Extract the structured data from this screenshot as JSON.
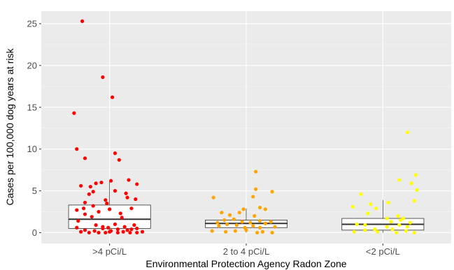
{
  "chart_data": {
    "type": "box+jitter",
    "title": "",
    "xlabel": "Environmental Protection Agency Radon Zone",
    "ylabel": "Cases per 100,000 dog years at risk",
    "ylim": [
      -1.3,
      26.5
    ],
    "yticks": [
      0,
      5,
      10,
      15,
      20,
      25
    ],
    "grid": true,
    "categories": [
      ">4 pCi/L",
      "2 to 4 pCi/L",
      "<2 pCi/L"
    ],
    "colors": [
      "#ff0000",
      "#ffa500",
      "#ffff00"
    ],
    "boxes": [
      {
        "q1": 0.5,
        "median": 1.6,
        "q3": 3.3,
        "whisker_low": 0.0,
        "whisker_high": 6.2
      },
      {
        "q1": 0.6,
        "median": 1.1,
        "q3": 1.5,
        "whisker_low": 0.0,
        "whisker_high": 2.9
      },
      {
        "q1": 0.3,
        "median": 1.0,
        "q3": 1.7,
        "whisker_low": 0.0,
        "whisker_high": 3.9
      }
    ],
    "points": [
      [
        [
          -0.2,
          25.3
        ],
        [
          -0.05,
          18.6
        ],
        [
          0.02,
          16.2
        ],
        [
          -0.26,
          14.3
        ],
        [
          -0.24,
          10.0
        ],
        [
          -0.18,
          8.9
        ],
        [
          0.04,
          9.5
        ],
        [
          0.07,
          8.7
        ],
        [
          0.14,
          6.3
        ],
        [
          -0.21,
          5.6
        ],
        [
          -0.06,
          6.0
        ],
        [
          0.01,
          6.2
        ],
        [
          0.2,
          5.8
        ],
        [
          -0.14,
          5.5
        ],
        [
          -0.1,
          5.9
        ],
        [
          -0.12,
          4.9
        ],
        [
          0.04,
          5.0
        ],
        [
          0.12,
          4.7
        ],
        [
          -0.15,
          4.6
        ],
        [
          0.13,
          4.2
        ],
        [
          0.19,
          4.0
        ],
        [
          -0.03,
          3.9
        ],
        [
          -0.18,
          3.6
        ],
        [
          -0.02,
          3.5
        ],
        [
          -0.12,
          3.2
        ],
        [
          0.0,
          2.8
        ],
        [
          -0.19,
          2.9
        ],
        [
          0.16,
          2.9
        ],
        [
          -0.24,
          2.7
        ],
        [
          -0.08,
          2.5
        ],
        [
          0.08,
          2.3
        ],
        [
          -0.18,
          2.2
        ],
        [
          -0.13,
          1.9
        ],
        [
          0.09,
          1.8
        ],
        [
          -0.23,
          1.4
        ],
        [
          0.04,
          1.0
        ],
        [
          0.18,
          0.9
        ],
        [
          -0.1,
          0.9
        ],
        [
          -0.05,
          0.7
        ],
        [
          0.11,
          0.7
        ],
        [
          -0.24,
          0.6
        ],
        [
          0.2,
          0.5
        ],
        [
          0.16,
          0.4
        ],
        [
          -0.05,
          0.5
        ],
        [
          0.06,
          0.4
        ],
        [
          -0.18,
          0.3
        ],
        [
          0.01,
          0.2
        ],
        [
          -0.11,
          0.2
        ],
        [
          0.24,
          0.1
        ],
        [
          -0.21,
          0.1
        ],
        [
          0.1,
          0.1
        ],
        [
          0.15,
          0.0
        ],
        [
          -0.03,
          0.0
        ],
        [
          0.06,
          0.0
        ],
        [
          0.2,
          0.0
        ],
        [
          -0.15,
          0.0
        ],
        [
          -0.08,
          0.0
        ],
        [
          0.0,
          0.1
        ],
        [
          0.13,
          0.3
        ],
        [
          -0.01,
          0.6
        ]
      ],
      [
        [
          0.07,
          7.3
        ],
        [
          0.07,
          5.2
        ],
        [
          0.19,
          4.9
        ],
        [
          -0.24,
          4.2
        ],
        [
          0.05,
          4.3
        ],
        [
          -0.02,
          2.8
        ],
        [
          -0.05,
          2.4
        ],
        [
          0.1,
          3.0
        ],
        [
          0.14,
          2.8
        ],
        [
          -0.18,
          2.4
        ],
        [
          -0.12,
          2.1
        ],
        [
          0.06,
          2.0
        ],
        [
          -0.09,
          1.6
        ],
        [
          -0.16,
          1.5
        ],
        [
          0.1,
          1.4
        ],
        [
          0.18,
          1.3
        ],
        [
          -0.03,
          1.3
        ],
        [
          0.03,
          1.2
        ],
        [
          -0.21,
          1.2
        ],
        [
          0.14,
          1.1
        ],
        [
          -0.14,
          1.0
        ],
        [
          -0.07,
          0.9
        ],
        [
          0.05,
          0.8
        ],
        [
          0.21,
          0.7
        ],
        [
          -0.2,
          0.8
        ],
        [
          -0.01,
          0.6
        ],
        [
          0.1,
          0.6
        ],
        [
          -0.25,
          0.2
        ],
        [
          -0.08,
          0.2
        ],
        [
          0.0,
          0.3
        ],
        [
          0.12,
          0.1
        ],
        [
          0.19,
          0.0
        ],
        [
          -0.15,
          0.1
        ],
        [
          0.08,
          0.0
        ]
      ],
      [
        [
          0.18,
          12.0
        ],
        [
          0.24,
          6.9
        ],
        [
          0.12,
          6.3
        ],
        [
          0.21,
          5.9
        ],
        [
          0.25,
          5.1
        ],
        [
          -0.16,
          4.6
        ],
        [
          0.23,
          3.8
        ],
        [
          0.04,
          3.6
        ],
        [
          -0.09,
          3.4
        ],
        [
          -0.22,
          3.1
        ],
        [
          -0.05,
          2.9
        ],
        [
          -0.11,
          2.3
        ],
        [
          0.11,
          2.0
        ],
        [
          0.15,
          1.7
        ],
        [
          0.03,
          1.7
        ],
        [
          0.13,
          1.5
        ],
        [
          0.06,
          1.3
        ],
        [
          0.2,
          1.2
        ],
        [
          -0.19,
          1.0
        ],
        [
          -0.13,
          0.9
        ],
        [
          0.12,
          0.9
        ],
        [
          0.18,
          0.7
        ],
        [
          0.03,
          0.7
        ],
        [
          -0.06,
          0.4
        ],
        [
          -0.13,
          0.3
        ],
        [
          0.07,
          0.4
        ],
        [
          0.17,
          0.2
        ],
        [
          -0.21,
          0.1
        ],
        [
          -0.04,
          0.1
        ],
        [
          0.23,
          0.0
        ],
        [
          0.1,
          0.0
        ]
      ]
    ]
  }
}
